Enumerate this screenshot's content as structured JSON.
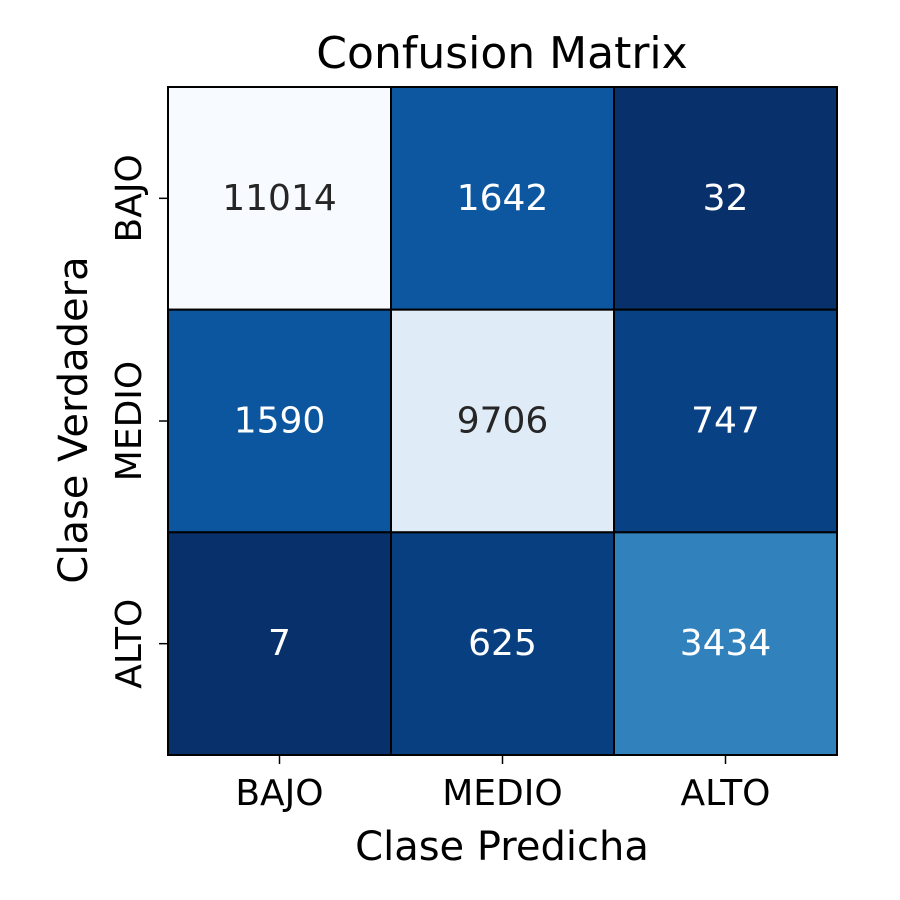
{
  "chart_data": {
    "type": "heatmap",
    "title": "Confusion Matrix",
    "xlabel": "Clase Predicha",
    "ylabel": "Clase Verdadera",
    "x_categories": [
      "BAJO",
      "MEDIO",
      "ALTO"
    ],
    "y_categories": [
      "BAJO",
      "MEDIO",
      "ALTO"
    ],
    "values": [
      [
        11014,
        1642,
        32
      ],
      [
        1590,
        9706,
        747
      ],
      [
        7,
        625,
        3434
      ]
    ],
    "colormap": "Blues",
    "colorbar": false,
    "grid": false,
    "cell_border_color": "#000000",
    "dark_text_color": "#262626",
    "light_text_color": "#ffffff"
  }
}
